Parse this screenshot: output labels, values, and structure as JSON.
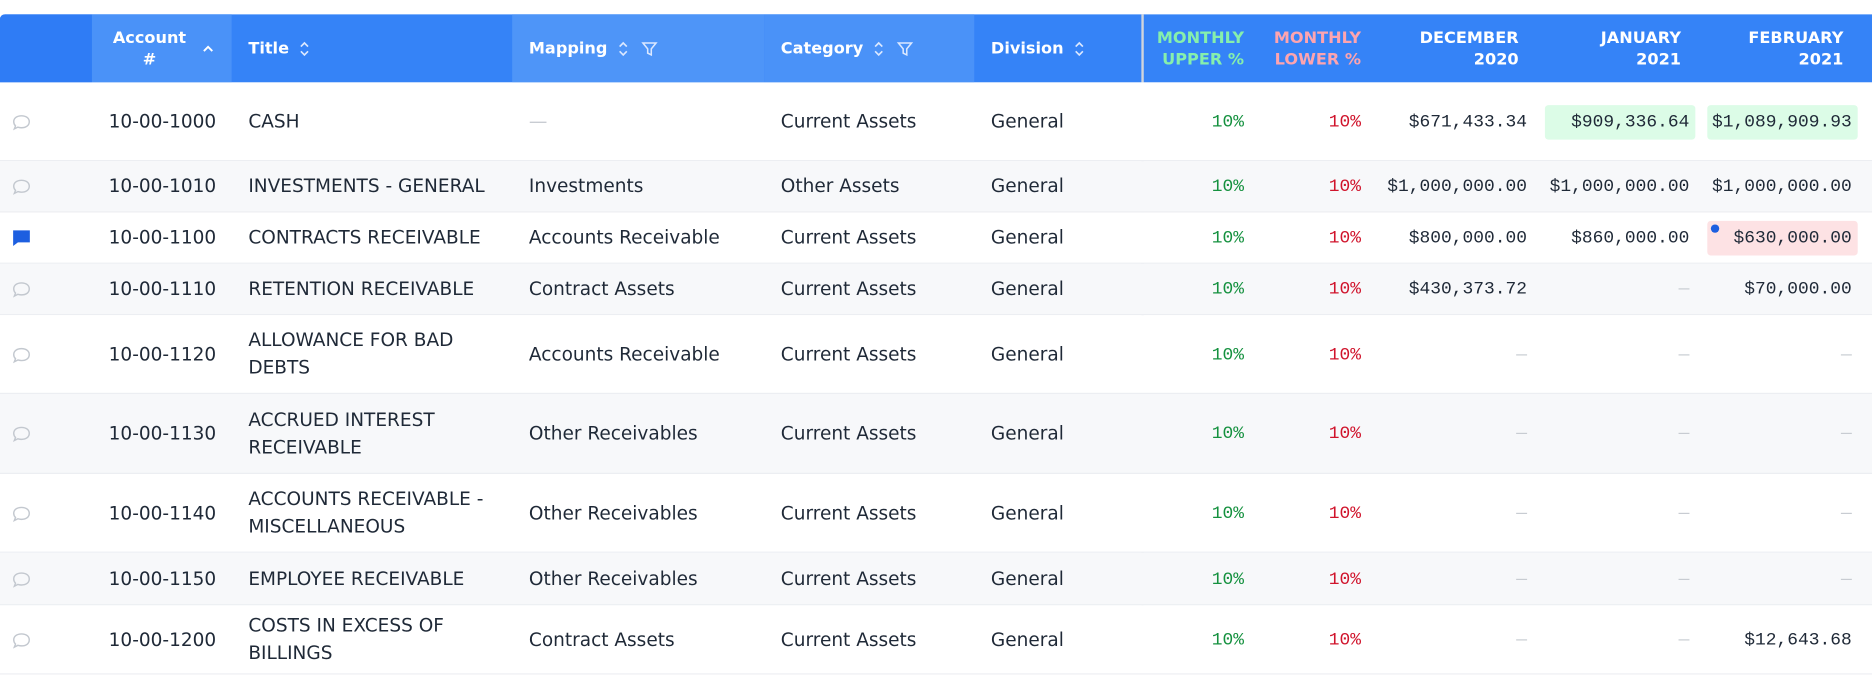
{
  "header": {
    "columns": [
      "Account #",
      "Title",
      "Mapping",
      "Category",
      "Division",
      "MONTHLY UPPER %",
      "MONTHLY LOWER %",
      "DECEMBER 2020",
      "JANUARY 2021",
      "FEBRUARY 2021"
    ]
  },
  "table": {
    "rows": [
      {
        "has_comment": false,
        "account": "10-00-1000",
        "title": "CASH",
        "mapping": "—",
        "category": "Current Assets",
        "division": "General",
        "upper": "10%",
        "lower": "10%",
        "months": [
          {
            "text": "$671,433.34"
          },
          {
            "text": "$909,336.64",
            "hl": "green"
          },
          {
            "text": "$1,089,909.93",
            "hl": "green"
          }
        ]
      },
      {
        "has_comment": false,
        "account": "10-00-1010",
        "title": "INVESTMENTS - GENERAL",
        "mapping": "Investments",
        "category": "Other Assets",
        "division": "General",
        "upper": "10%",
        "lower": "10%",
        "months": [
          {
            "text": "$1,000,000.00"
          },
          {
            "text": "$1,000,000.00"
          },
          {
            "text": "$1,000,000.00"
          }
        ]
      },
      {
        "has_comment": true,
        "account": "10-00-1100",
        "title": "CONTRACTS RECEIVABLE",
        "mapping": "Accounts Receivable",
        "category": "Current Assets",
        "division": "General",
        "upper": "10%",
        "lower": "10%",
        "months": [
          {
            "text": "$800,000.00"
          },
          {
            "text": "$860,000.00"
          },
          {
            "text": "$630,000.00",
            "hl": "red",
            "dot": true
          }
        ]
      },
      {
        "has_comment": false,
        "account": "10-00-1110",
        "title": "RETENTION RECEIVABLE",
        "mapping": "Contract Assets",
        "category": "Current Assets",
        "division": "General",
        "upper": "10%",
        "lower": "10%",
        "months": [
          {
            "text": "$430,373.72"
          },
          {
            "text": "—"
          },
          {
            "text": "$70,000.00"
          }
        ]
      },
      {
        "has_comment": false,
        "account": "10-00-1120",
        "title": "ALLOWANCE FOR BAD DEBTS",
        "mapping": "Accounts Receivable",
        "category": "Current Assets",
        "division": "General",
        "upper": "10%",
        "lower": "10%",
        "months": [
          {
            "text": "—"
          },
          {
            "text": "—"
          },
          {
            "text": "—"
          }
        ]
      },
      {
        "has_comment": false,
        "account": "10-00-1130",
        "title": "ACCRUED INTEREST RECEIVABLE",
        "mapping": "Other Receivables",
        "category": "Current Assets",
        "division": "General",
        "upper": "10%",
        "lower": "10%",
        "months": [
          {
            "text": "—"
          },
          {
            "text": "—"
          },
          {
            "text": "—"
          }
        ]
      },
      {
        "has_comment": false,
        "account": "10-00-1140",
        "title": "ACCOUNTS RECEIVABLE - MISCELLANEOUS",
        "mapping": "Other Receivables",
        "category": "Current Assets",
        "division": "General",
        "upper": "10%",
        "lower": "10%",
        "months": [
          {
            "text": "—"
          },
          {
            "text": "—"
          },
          {
            "text": "—"
          }
        ]
      },
      {
        "has_comment": false,
        "account": "10-00-1150",
        "title": "EMPLOYEE RECEIVABLE",
        "mapping": "Other Receivables",
        "category": "Current Assets",
        "division": "General",
        "upper": "10%",
        "lower": "10%",
        "months": [
          {
            "text": "—"
          },
          {
            "text": "—"
          },
          {
            "text": "—"
          }
        ]
      },
      {
        "has_comment": false,
        "account": "10-00-1200",
        "title": "COSTS IN EXCESS OF BILLINGS",
        "mapping": "Contract Assets",
        "category": "Current Assets",
        "division": "General",
        "upper": "10%",
        "lower": "10%",
        "months": [
          {
            "text": "—"
          },
          {
            "text": "—"
          },
          {
            "text": "$12,643.68"
          }
        ]
      }
    ]
  }
}
